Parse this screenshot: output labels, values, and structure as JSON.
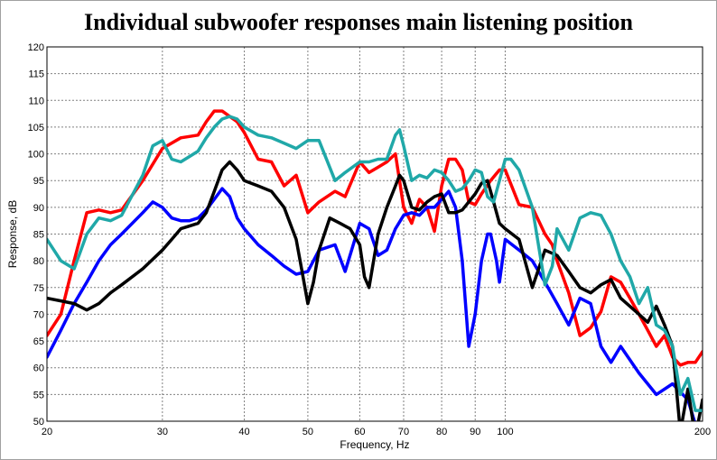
{
  "chart_data": {
    "type": "line",
    "title": "Individual subwoofer responses main listening position",
    "xlabel": "Frequency, Hz",
    "ylabel": "Response, dB",
    "xscale": "log",
    "xlim": [
      20,
      200
    ],
    "ylim": [
      50,
      120
    ],
    "xticks": [
      20,
      30,
      40,
      50,
      60,
      70,
      80,
      90,
      100,
      200
    ],
    "yticks": [
      50,
      55,
      60,
      65,
      70,
      75,
      80,
      85,
      90,
      95,
      100,
      105,
      110,
      115,
      120
    ],
    "grid": true,
    "legend": "none",
    "series": [
      {
        "color": "#ff0000",
        "x": [
          20,
          21,
          22,
          23,
          24,
          25,
          26,
          28,
          30,
          32,
          34,
          35,
          36,
          37,
          38,
          39,
          40,
          42,
          44,
          46,
          48,
          50,
          52,
          55,
          57,
          60,
          62,
          64,
          66,
          68,
          70,
          72,
          74,
          76,
          78,
          80,
          82,
          84,
          86,
          88,
          90,
          92,
          95,
          98,
          100,
          105,
          110,
          115,
          118,
          120,
          125,
          130,
          135,
          140,
          145,
          150,
          155,
          160,
          165,
          170,
          175,
          180,
          185,
          190,
          195,
          200
        ],
        "y": [
          66,
          70,
          80,
          89,
          89.5,
          89,
          89.5,
          95,
          101,
          103,
          103.5,
          106,
          108,
          108,
          107,
          106,
          104,
          99,
          98.5,
          94,
          96,
          89,
          91,
          93,
          92,
          98.5,
          96.5,
          97.5,
          98.5,
          100,
          90,
          87,
          91.5,
          90,
          85.5,
          94,
          99,
          99,
          97,
          91,
          90.5,
          92.5,
          95,
          97,
          97,
          90.5,
          90,
          85,
          83,
          80,
          74,
          66,
          67.5,
          70.5,
          77,
          76,
          73,
          70,
          67,
          64,
          66,
          62,
          60.5,
          61,
          61,
          63
        ]
      },
      {
        "color": "#0000ff",
        "x": [
          20,
          21,
          22,
          23,
          24,
          25,
          26,
          28,
          29,
          30,
          31,
          32,
          33,
          34,
          35,
          36,
          37,
          38,
          39,
          40,
          42,
          44,
          46,
          48,
          50,
          52,
          55,
          57,
          60,
          62,
          64,
          66,
          68,
          70,
          72,
          74,
          76,
          78,
          80,
          82,
          84,
          86,
          88,
          90,
          92,
          94,
          95,
          97,
          98,
          100,
          105,
          110,
          115,
          120,
          125,
          130,
          135,
          140,
          145,
          150,
          160,
          170,
          180,
          190,
          200
        ],
        "y": [
          62,
          67,
          72,
          76,
          80,
          83,
          85,
          89,
          91,
          90,
          88,
          87.5,
          87.5,
          88,
          89.5,
          91.5,
          93.5,
          92,
          88,
          86,
          83,
          81,
          79,
          77.5,
          78,
          82,
          83,
          78,
          87,
          86,
          81,
          82,
          86,
          88.5,
          89,
          88.5,
          90,
          90,
          91.5,
          93,
          90,
          80,
          64,
          70,
          80,
          85,
          85,
          80,
          76,
          84,
          82,
          80,
          76,
          72,
          68,
          73,
          72,
          64,
          61,
          64,
          59,
          55,
          57,
          54,
          45
        ]
      },
      {
        "color": "#000000",
        "x": [
          20,
          21,
          22,
          23,
          24,
          25,
          26,
          28,
          30,
          31,
          32,
          33,
          34,
          35,
          36,
          37,
          38,
          39,
          40,
          42,
          44,
          46,
          48,
          49,
          50,
          51,
          52,
          54,
          56,
          58,
          60,
          61,
          62,
          64,
          66,
          68,
          69,
          70,
          72,
          74,
          76,
          78,
          80,
          82,
          84,
          86,
          88,
          90,
          92,
          94,
          96,
          98,
          100,
          105,
          110,
          115,
          120,
          125,
          130,
          135,
          140,
          145,
          150,
          160,
          165,
          170,
          175,
          180,
          185,
          190,
          195,
          200
        ],
        "y": [
          73,
          72.5,
          72,
          70.8,
          72,
          74,
          75.5,
          78.5,
          82,
          84,
          86,
          86.5,
          87,
          89,
          93,
          97,
          98.5,
          97,
          95,
          94,
          93,
          90,
          84,
          78,
          72,
          76,
          82,
          88,
          87,
          86,
          83,
          77,
          75,
          85,
          90,
          94,
          96,
          95,
          90,
          89.5,
          91,
          92,
          92.5,
          89,
          89,
          89.5,
          91,
          92.5,
          94.5,
          95,
          91,
          87,
          86,
          84,
          75,
          82,
          81,
          78,
          75,
          74,
          75.5,
          76.5,
          73,
          70,
          68.5,
          71.5,
          68,
          64,
          48,
          56,
          47,
          54
        ]
      },
      {
        "color": "#20a8a8",
        "x": [
          20,
          21,
          22,
          23,
          24,
          25,
          26,
          28,
          29,
          30,
          31,
          32,
          33,
          34,
          35,
          36,
          37,
          38,
          39,
          40,
          42,
          44,
          46,
          48,
          50,
          52,
          55,
          57,
          60,
          62,
          64,
          66,
          68,
          69,
          70,
          72,
          74,
          76,
          78,
          80,
          82,
          84,
          86,
          88,
          90,
          92,
          94,
          96,
          98,
          100,
          102,
          105,
          110,
          115,
          118,
          120,
          125,
          130,
          135,
          140,
          145,
          150,
          155,
          160,
          165,
          170,
          175,
          180,
          185,
          190,
          195,
          200
        ],
        "y": [
          84,
          80,
          78.5,
          85,
          88,
          87.5,
          88.5,
          96,
          101.5,
          102.5,
          99,
          98.5,
          99.5,
          100.5,
          103,
          105,
          106.5,
          107,
          106.5,
          105,
          103.5,
          103,
          102,
          101,
          102.5,
          102.5,
          95,
          96.5,
          98.5,
          98.5,
          99,
          99,
          103.5,
          104.5,
          101.5,
          95,
          96,
          95.5,
          97,
          96.5,
          95,
          93,
          93.5,
          95,
          97,
          96.5,
          92,
          91,
          95,
          99,
          99,
          97,
          90,
          75.5,
          79,
          86,
          82,
          88,
          89,
          88.5,
          85,
          80,
          77,
          72,
          75,
          68,
          67,
          64,
          55,
          58,
          52,
          52
        ]
      }
    ]
  }
}
